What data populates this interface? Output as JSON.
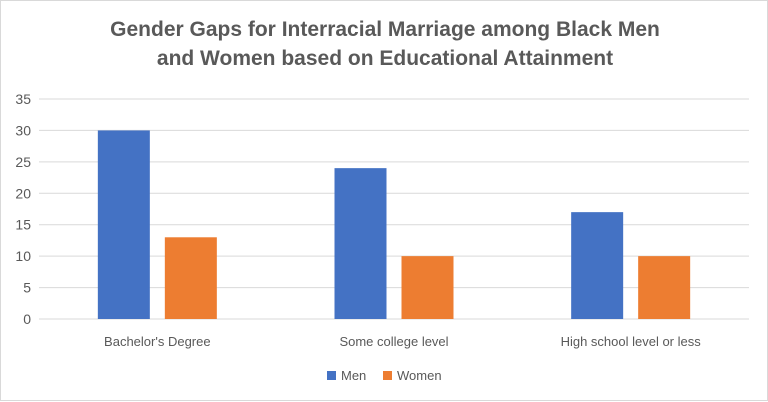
{
  "chart_data": {
    "type": "bar",
    "title_lines": [
      "Gender Gaps for Interracial Marriage among Black Men",
      "and Women  based on Educational Attainment"
    ],
    "categories": [
      "Bachelor's Degree",
      "Some college level",
      "High school level or less"
    ],
    "series": [
      {
        "name": "Men",
        "values": [
          30,
          24,
          17
        ],
        "color": "#4472C4"
      },
      {
        "name": "Women",
        "values": [
          13,
          10,
          10
        ],
        "color": "#ED7D31"
      }
    ],
    "ylim": [
      0,
      35
    ],
    "yticks": [
      0,
      5,
      10,
      15,
      20,
      25,
      30,
      35
    ],
    "grid": true,
    "legend": "bottom"
  }
}
